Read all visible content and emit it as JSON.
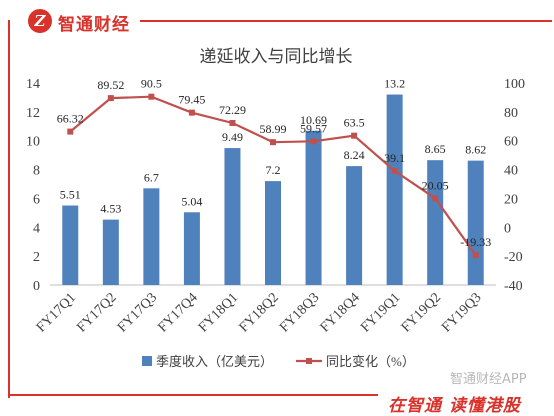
{
  "brand": {
    "logo_glyph": "Z",
    "name": "智通财经"
  },
  "footer": {
    "slogan": "在智通 读懂港股",
    "watermark": "智通财经APP"
  },
  "colors": {
    "brand_red": "#d9322b",
    "bar": "#4f81bd",
    "line": "#c0504d"
  },
  "chart_data": {
    "type": "bar+line",
    "title": "递延收入与同比增长",
    "categories": [
      "FY17Q1",
      "FY17Q2",
      "FY17Q3",
      "FY17Q4",
      "FY18Q1",
      "FY18Q2",
      "FY18Q3",
      "FY18Q4",
      "FY19Q1",
      "FY19Q2",
      "FY19Q3"
    ],
    "series": [
      {
        "name": "季度收入（亿美元）",
        "type": "bar",
        "axis": "left",
        "values": [
          5.51,
          4.53,
          6.7,
          5.04,
          9.49,
          7.2,
          10.69,
          8.24,
          13.2,
          8.65,
          8.62
        ],
        "labels": [
          "5.51",
          "4.53",
          "6.7",
          "5.04",
          "9.49",
          "7.2",
          "10.69",
          "8.24",
          "13.2",
          "8.65",
          "8.62"
        ]
      },
      {
        "name": "同比变化（%）",
        "type": "line",
        "axis": "right",
        "values": [
          66.32,
          89.52,
          90.5,
          79.45,
          72.29,
          58.99,
          59.57,
          63.5,
          39.1,
          20.05,
          -19.33
        ],
        "labels": [
          "66.32",
          "89.52",
          "90.5",
          "79.45",
          "72.29",
          "58.99",
          "59.57",
          "63.5",
          "39.1",
          "20.05",
          "-19.33"
        ]
      }
    ],
    "left_axis": {
      "ylim": [
        0,
        14
      ],
      "ticks": [
        "0",
        "2",
        "4",
        "6",
        "8",
        "10",
        "12",
        "14"
      ]
    },
    "right_axis": {
      "ylim": [
        -40,
        100
      ],
      "ticks": [
        "-40",
        "-20",
        "0",
        "20",
        "40",
        "60",
        "80",
        "100"
      ]
    },
    "legend_position": "bottom",
    "grid": false
  }
}
